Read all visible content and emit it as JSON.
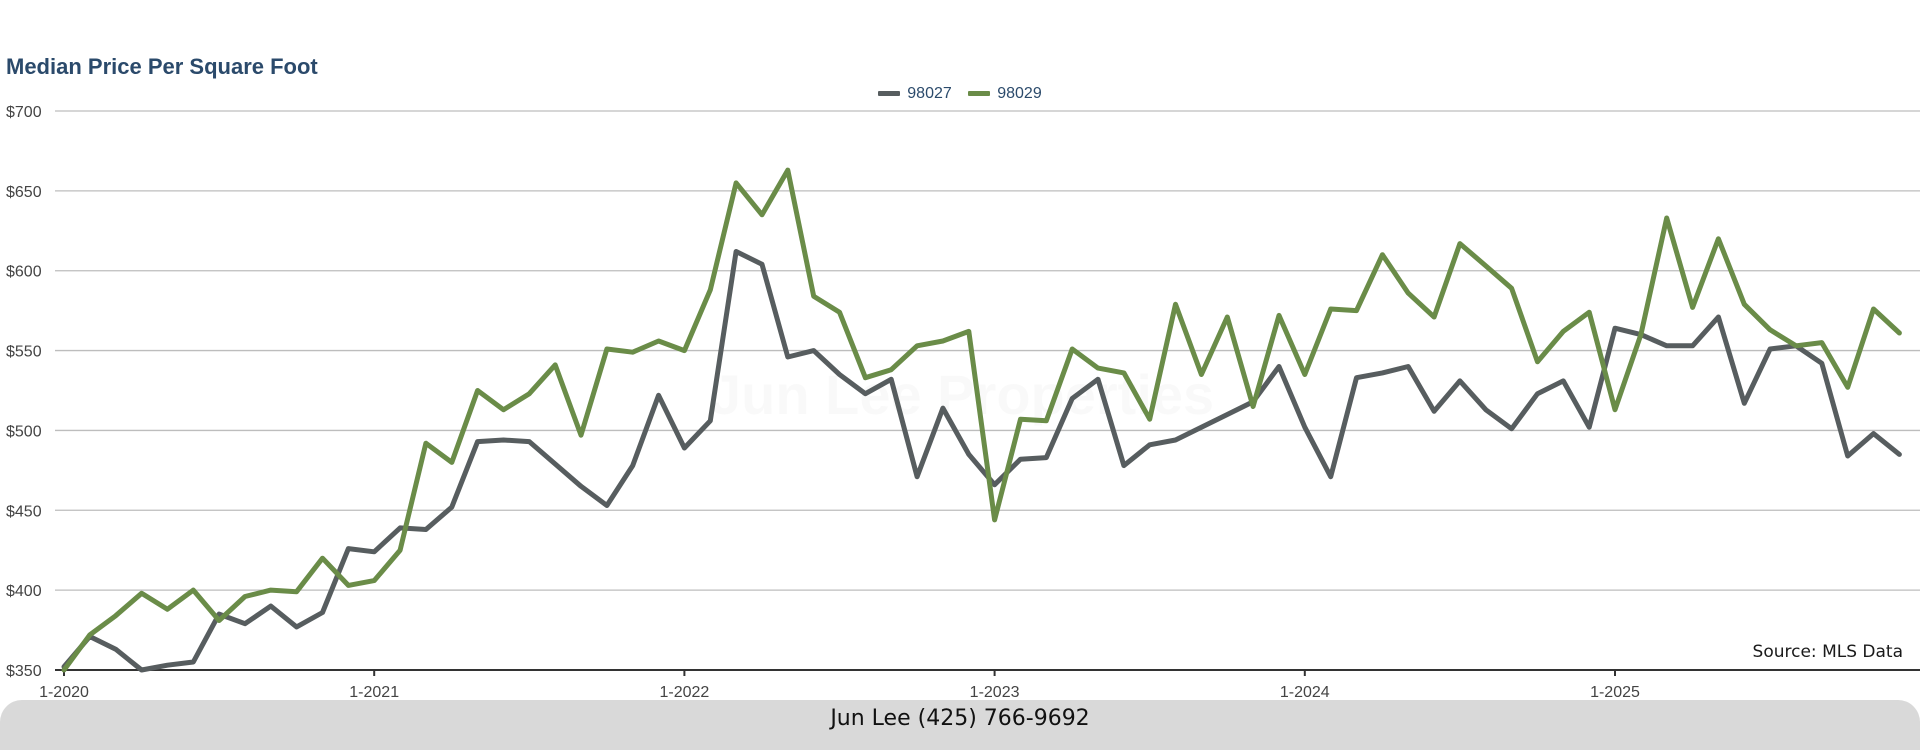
{
  "chart_data": {
    "type": "line",
    "title": "Median Price Per Square Foot",
    "xlabel": "",
    "ylabel": "",
    "ylim": [
      350,
      700
    ],
    "yticks": [
      "$700",
      "$650",
      "$600",
      "$550",
      "$500",
      "$450",
      "$400",
      "$350"
    ],
    "ytick_values": [
      700,
      650,
      600,
      550,
      500,
      450,
      400,
      350
    ],
    "xticks": [
      "1-2020",
      "1-2021",
      "1-2022",
      "1-2023",
      "1-2024",
      "1-2025"
    ],
    "x_start": "1-2020",
    "grid": true,
    "legend_position": "top-center",
    "series": [
      {
        "name": "98027",
        "color": "#575d5f",
        "values": [
          352,
          371,
          363,
          350,
          353,
          355,
          385,
          379,
          390,
          377,
          386,
          426,
          424,
          439,
          438,
          452,
          493,
          494,
          493,
          479,
          465,
          453,
          478,
          522,
          489,
          506,
          612,
          604,
          546,
          550,
          535,
          523,
          532,
          471,
          514,
          485,
          466,
          482,
          483,
          520,
          532,
          478,
          491,
          494,
          502,
          510,
          518,
          540,
          502,
          471,
          533,
          536,
          540,
          512,
          531,
          513,
          501,
          523,
          531,
          502,
          564,
          560,
          553,
          553,
          571,
          517,
          551,
          553,
          542,
          484,
          498,
          485
        ],
        "values_note": ""
      },
      {
        "name": "98029",
        "color": "#6a8c48",
        "values": [
          350,
          372,
          384,
          398,
          388,
          400,
          381,
          396,
          400,
          399,
          420,
          403,
          406,
          425,
          492,
          480,
          525,
          513,
          523,
          541,
          497,
          551,
          549,
          556,
          550,
          588,
          655,
          635,
          663,
          584,
          574,
          533,
          538,
          553,
          556,
          562,
          444,
          507,
          506,
          551,
          539,
          536,
          507,
          579,
          535,
          571,
          515,
          572,
          535,
          576,
          575,
          610,
          586,
          571,
          617,
          603,
          589,
          543,
          562,
          574,
          513,
          560,
          633,
          577,
          620,
          579,
          563,
          553,
          555,
          527,
          576,
          561
        ]
      }
    ],
    "source_label": "Source: MLS Data",
    "watermark": "Jun Lee Properties"
  },
  "footer": {
    "text": "Jun Lee (425) 766-9692"
  }
}
